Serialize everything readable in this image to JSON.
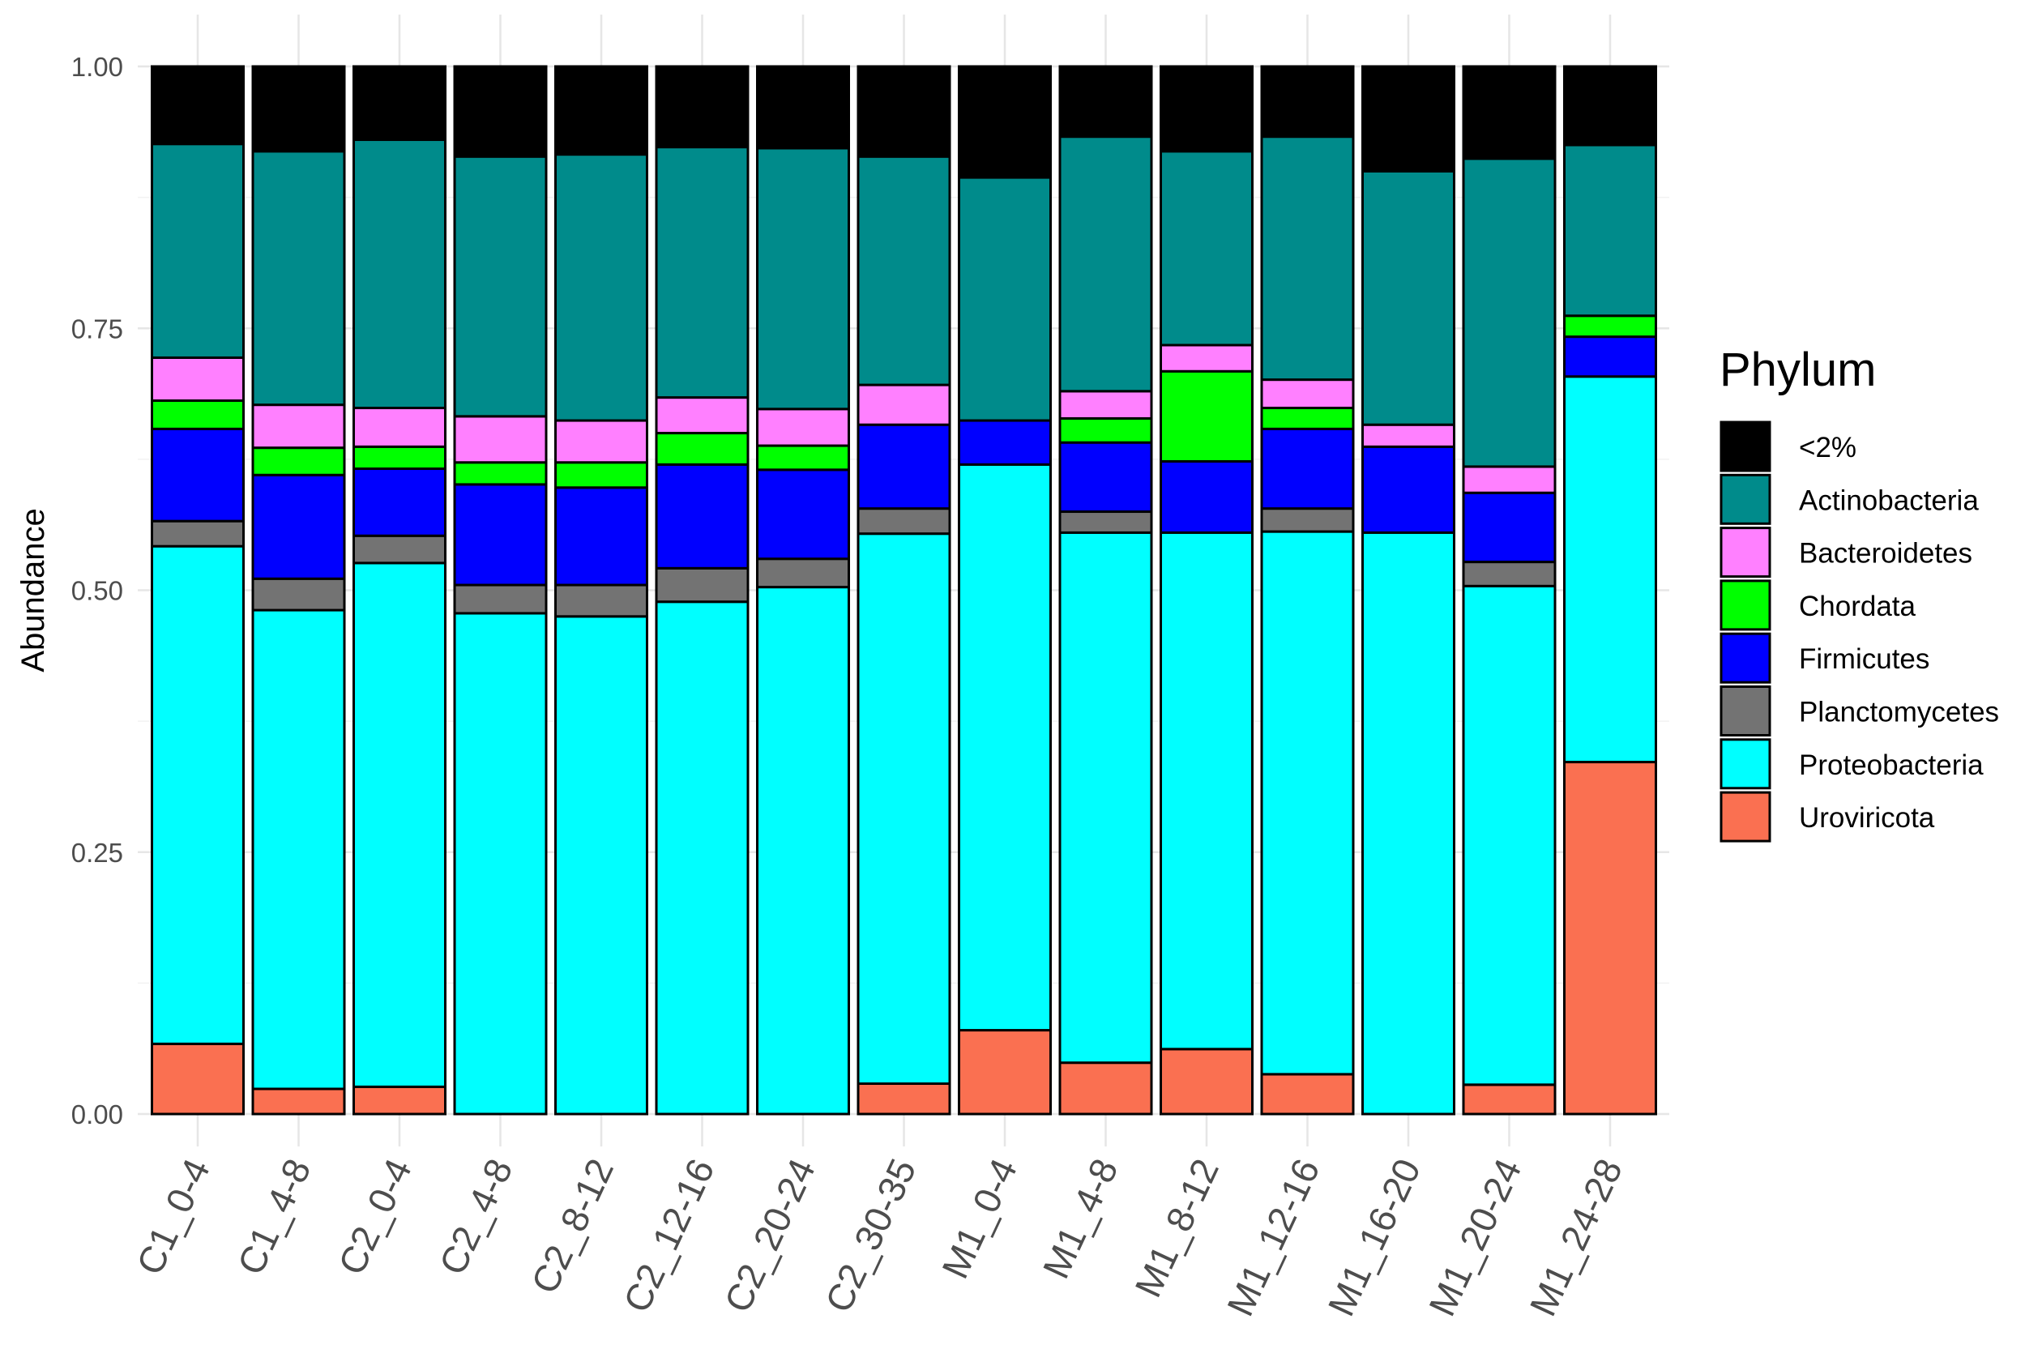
{
  "chart_data": {
    "type": "bar",
    "stacked": true,
    "title": "",
    "xlabel": "",
    "ylabel": "Abundance",
    "ylim": [
      0,
      1
    ],
    "yticks": [
      "0.00",
      "0.25",
      "0.50",
      "0.75",
      "1.00"
    ],
    "grid": true,
    "legend_title": "Phylum",
    "legend_position": "right",
    "categories": [
      "C1_0-4",
      "C1_4-8",
      "C2_0-4",
      "C2_4-8",
      "C2_8-12",
      "C2_12-16",
      "C2_20-24",
      "C2_30-35",
      "M1_0-4",
      "M1_4-8",
      "M1_8-12",
      "M1_12-16",
      "M1_16-20",
      "M1_20-24",
      "M1_24-28"
    ],
    "series": [
      {
        "name": "Uroviricota",
        "color": "#FA7051",
        "values": [
          0.067,
          0.024,
          0.026,
          0.0,
          0.0,
          0.0,
          0.0,
          0.029,
          0.08,
          0.049,
          0.062,
          0.038,
          0.0,
          0.028,
          0.336
        ]
      },
      {
        "name": "Proteobacteria",
        "color": "#00FFFF",
        "values": [
          0.475,
          0.457,
          0.5,
          0.478,
          0.475,
          0.489,
          0.503,
          0.525,
          0.54,
          0.506,
          0.493,
          0.518,
          0.555,
          0.476,
          0.368
        ]
      },
      {
        "name": "Planctomycetes",
        "color": "#737373",
        "values": [
          0.024,
          0.03,
          0.026,
          0.027,
          0.03,
          0.032,
          0.027,
          0.024,
          0.0,
          0.02,
          0.0,
          0.022,
          0.0,
          0.023,
          0.0
        ]
      },
      {
        "name": "Firmicutes",
        "color": "#0000FF",
        "values": [
          0.088,
          0.099,
          0.064,
          0.096,
          0.093,
          0.099,
          0.085,
          0.08,
          0.042,
          0.066,
          0.068,
          0.076,
          0.082,
          0.066,
          0.038
        ]
      },
      {
        "name": "Chordata",
        "color": "#00FF00",
        "values": [
          0.027,
          0.026,
          0.021,
          0.021,
          0.024,
          0.03,
          0.023,
          0.0,
          0.0,
          0.023,
          0.086,
          0.02,
          0.0,
          0.0,
          0.02
        ]
      },
      {
        "name": "Bacteroidetes",
        "color": "#FF80FF",
        "values": [
          0.041,
          0.041,
          0.037,
          0.044,
          0.04,
          0.034,
          0.035,
          0.038,
          0.0,
          0.026,
          0.025,
          0.027,
          0.021,
          0.025,
          0.0
        ]
      },
      {
        "name": "Actinobacteria",
        "color": "#008B8B",
        "values": [
          0.204,
          0.242,
          0.256,
          0.248,
          0.254,
          0.239,
          0.249,
          0.218,
          0.232,
          0.243,
          0.185,
          0.232,
          0.242,
          0.294,
          0.163
        ]
      },
      {
        "name": "<2%",
        "color": "#000000",
        "values": [
          0.074,
          0.081,
          0.07,
          0.086,
          0.084,
          0.077,
          0.078,
          0.086,
          0.106,
          0.067,
          0.081,
          0.067,
          0.1,
          0.088,
          0.075
        ]
      }
    ],
    "legend_order": [
      "<2%",
      "Actinobacteria",
      "Bacteroidetes",
      "Chordata",
      "Firmicutes",
      "Planctomycetes",
      "Proteobacteria",
      "Uroviricota"
    ]
  }
}
